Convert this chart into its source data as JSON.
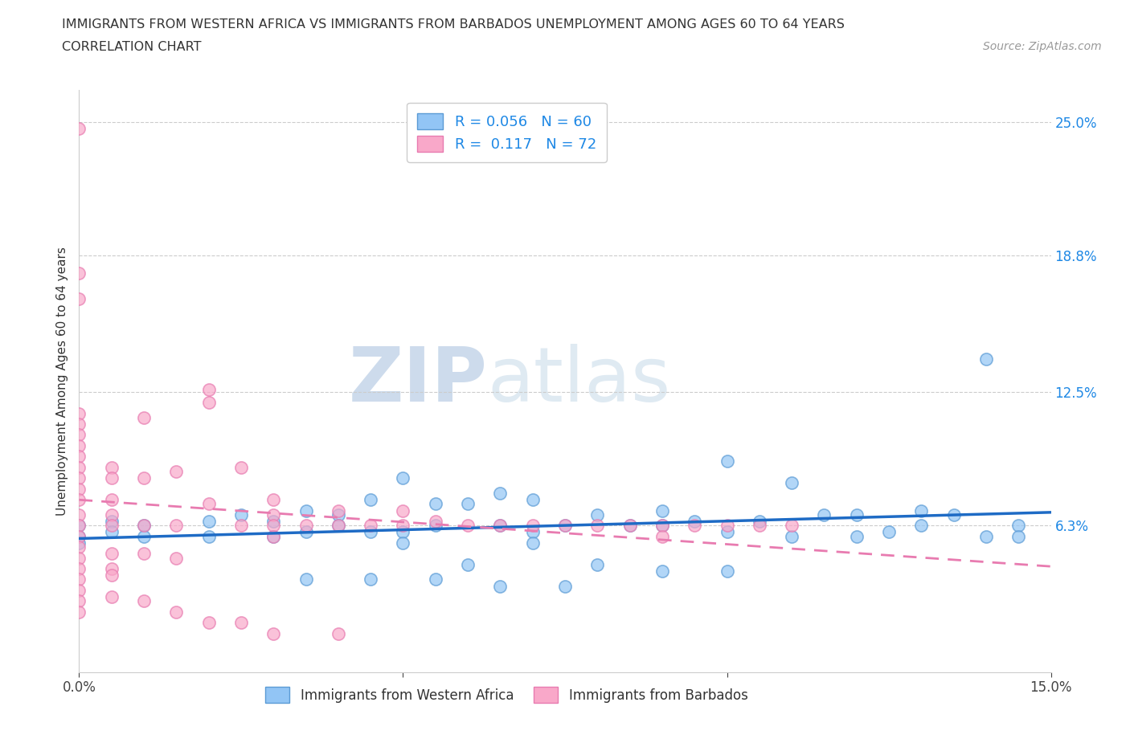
{
  "title_line1": "IMMIGRANTS FROM WESTERN AFRICA VS IMMIGRANTS FROM BARBADOS UNEMPLOYMENT AMONG AGES 60 TO 64 YEARS",
  "title_line2": "CORRELATION CHART",
  "source_text": "Source: ZipAtlas.com",
  "ylabel": "Unemployment Among Ages 60 to 64 years",
  "x_min": 0.0,
  "x_max": 0.15,
  "y_min": -0.005,
  "y_max": 0.265,
  "x_ticks": [
    0.0,
    0.05,
    0.1,
    0.15
  ],
  "x_tick_labels": [
    "0.0%",
    "",
    "",
    "15.0%"
  ],
  "y_ticks_right": [
    0.063,
    0.125,
    0.188,
    0.25
  ],
  "y_tick_labels_right": [
    "6.3%",
    "12.5%",
    "18.8%",
    "25.0%"
  ],
  "blue_color": "#92C5F5",
  "blue_edge_color": "#5B9BD5",
  "pink_color": "#F9A8C9",
  "pink_edge_color": "#E87BB0",
  "blue_line_color": "#1E6BC5",
  "pink_line_color": "#E87BB0",
  "blue_R": 0.056,
  "blue_N": 60,
  "pink_R": 0.117,
  "pink_N": 72,
  "legend_label_blue": "Immigrants from Western Africa",
  "legend_label_pink": "Immigrants from Barbados",
  "watermark_zip": "ZIP",
  "watermark_atlas": "atlas",
  "blue_scatter_x": [
    0.0,
    0.0,
    0.0,
    0.005,
    0.005,
    0.01,
    0.01,
    0.02,
    0.02,
    0.025,
    0.03,
    0.03,
    0.035,
    0.035,
    0.04,
    0.04,
    0.045,
    0.045,
    0.05,
    0.05,
    0.055,
    0.055,
    0.06,
    0.065,
    0.065,
    0.07,
    0.07,
    0.075,
    0.08,
    0.085,
    0.09,
    0.09,
    0.095,
    0.1,
    0.1,
    0.105,
    0.11,
    0.115,
    0.12,
    0.125,
    0.13,
    0.135,
    0.14,
    0.145,
    0.05,
    0.06,
    0.07,
    0.08,
    0.09,
    0.1,
    0.11,
    0.12,
    0.13,
    0.14,
    0.145,
    0.035,
    0.045,
    0.055,
    0.065,
    0.075
  ],
  "blue_scatter_y": [
    0.063,
    0.058,
    0.055,
    0.065,
    0.06,
    0.063,
    0.058,
    0.065,
    0.058,
    0.068,
    0.065,
    0.058,
    0.07,
    0.06,
    0.068,
    0.063,
    0.075,
    0.06,
    0.085,
    0.06,
    0.073,
    0.063,
    0.073,
    0.078,
    0.063,
    0.075,
    0.06,
    0.063,
    0.068,
    0.063,
    0.07,
    0.063,
    0.065,
    0.093,
    0.06,
    0.065,
    0.083,
    0.068,
    0.068,
    0.06,
    0.063,
    0.068,
    0.14,
    0.063,
    0.055,
    0.045,
    0.055,
    0.045,
    0.042,
    0.042,
    0.058,
    0.058,
    0.07,
    0.058,
    0.058,
    0.038,
    0.038,
    0.038,
    0.035,
    0.035
  ],
  "pink_scatter_x": [
    0.0,
    0.0,
    0.0,
    0.0,
    0.0,
    0.0,
    0.0,
    0.0,
    0.0,
    0.0,
    0.0,
    0.0,
    0.0,
    0.0,
    0.0,
    0.0,
    0.0,
    0.0,
    0.0,
    0.0,
    0.005,
    0.005,
    0.005,
    0.005,
    0.005,
    0.005,
    0.005,
    0.01,
    0.01,
    0.01,
    0.01,
    0.015,
    0.015,
    0.015,
    0.02,
    0.02,
    0.02,
    0.025,
    0.025,
    0.03,
    0.03,
    0.03,
    0.03,
    0.035,
    0.04,
    0.04,
    0.045,
    0.05,
    0.05,
    0.055,
    0.06,
    0.065,
    0.07,
    0.075,
    0.08,
    0.085,
    0.09,
    0.09,
    0.095,
    0.1,
    0.105,
    0.11,
    0.0,
    0.0,
    0.005,
    0.005,
    0.01,
    0.015,
    0.02,
    0.025,
    0.03,
    0.04
  ],
  "pink_scatter_y": [
    0.247,
    0.18,
    0.168,
    0.115,
    0.11,
    0.105,
    0.1,
    0.095,
    0.09,
    0.085,
    0.08,
    0.075,
    0.068,
    0.063,
    0.058,
    0.053,
    0.048,
    0.043,
    0.038,
    0.033,
    0.09,
    0.085,
    0.075,
    0.068,
    0.063,
    0.05,
    0.043,
    0.113,
    0.085,
    0.063,
    0.05,
    0.088,
    0.063,
    0.048,
    0.126,
    0.12,
    0.073,
    0.09,
    0.063,
    0.075,
    0.068,
    0.063,
    0.058,
    0.063,
    0.07,
    0.063,
    0.063,
    0.07,
    0.063,
    0.065,
    0.063,
    0.063,
    0.063,
    0.063,
    0.063,
    0.063,
    0.063,
    0.058,
    0.063,
    0.063,
    0.063,
    0.063,
    0.028,
    0.023,
    0.04,
    0.03,
    0.028,
    0.023,
    0.018,
    0.018,
    0.013,
    0.013
  ]
}
